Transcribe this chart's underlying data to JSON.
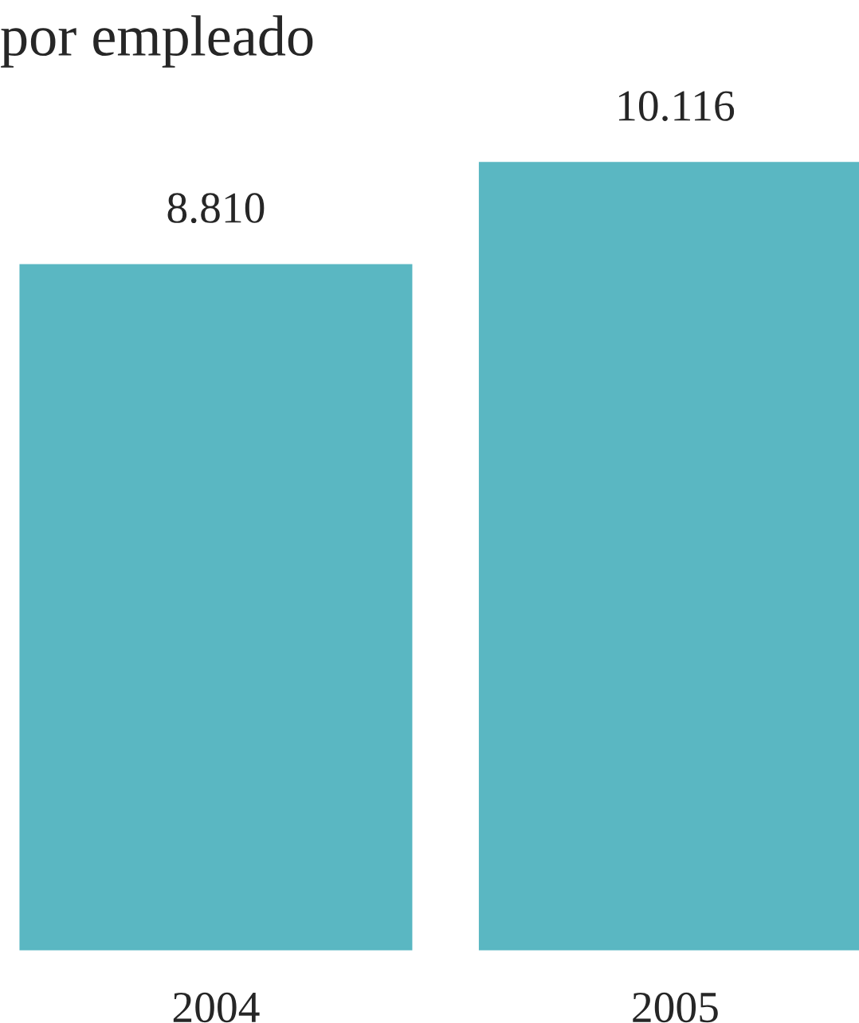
{
  "chart_data": {
    "type": "bar",
    "title": "por empleado",
    "categories": [
      "2004",
      "2005"
    ],
    "values": [
      8810,
      10116
    ],
    "value_labels": [
      "8.810",
      "10.116"
    ],
    "color": "#5ab7c2"
  }
}
